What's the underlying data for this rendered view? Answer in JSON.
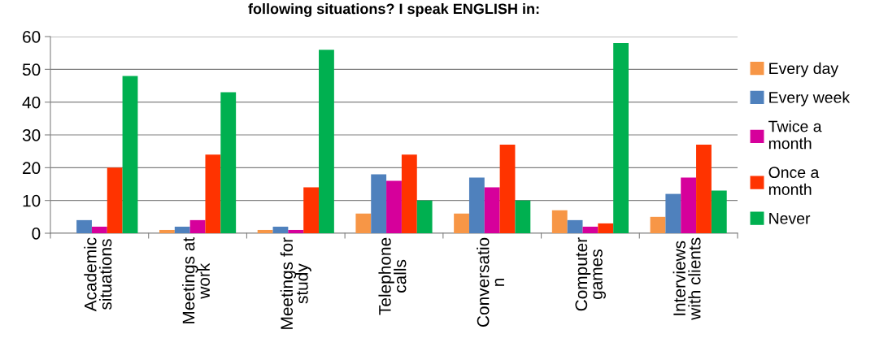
{
  "chart_data": {
    "type": "bar",
    "title": "following situations? I speak ENGLISH in:",
    "categories": [
      "Academic\nsituations",
      "Meetings at\nwork",
      "Meetings for\nstudy",
      "Telephone\ncalls",
      "Conversatio\nn",
      "Computer\ngames",
      "Interviews\nwith clients"
    ],
    "series": [
      {
        "name": "Every day",
        "color": "#f79646",
        "values": [
          0,
          1,
          1,
          6,
          6,
          7,
          5
        ]
      },
      {
        "name": "Every week",
        "color": "#4f81bd",
        "values": [
          4,
          2,
          2,
          18,
          17,
          4,
          12
        ]
      },
      {
        "name": "Twice a\nmonth",
        "color": "#d6009b",
        "values": [
          2,
          4,
          1,
          16,
          14,
          2,
          17
        ]
      },
      {
        "name": "Once a\nmonth",
        "color": "#ff3300",
        "values": [
          20,
          24,
          14,
          24,
          27,
          3,
          27
        ]
      },
      {
        "name": "Never",
        "color": "#00b050",
        "values": [
          48,
          43,
          56,
          10,
          10,
          58,
          13
        ]
      }
    ],
    "ylim": [
      0,
      60
    ],
    "yticks": [
      0,
      10,
      20,
      30,
      40,
      50,
      60
    ],
    "grid": "y",
    "legend": "right"
  }
}
